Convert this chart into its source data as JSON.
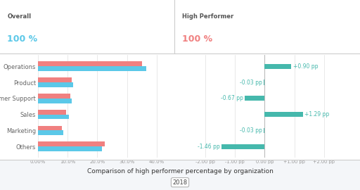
{
  "categories": [
    "Operations",
    "Product",
    "Customer Support",
    "Sales",
    "Marketing",
    "Others"
  ],
  "overall_blue": [
    36.5,
    12.0,
    11.5,
    10.5,
    8.5,
    21.5
  ],
  "overall_red": [
    35.0,
    11.5,
    11.0,
    9.5,
    8.0,
    22.5
  ],
  "diff_values": [
    0.9,
    -0.03,
    -0.67,
    1.29,
    -0.03,
    -1.46
  ],
  "diff_labels": [
    "+0.90 pp",
    "-0.03 pp",
    "-0.67 pp",
    "+1.29 pp",
    "-0.03 pp",
    "-1.46 pp"
  ],
  "blue_color": "#5BC8E8",
  "red_color": "#F08080",
  "teal_color": "#45B8AC",
  "header_blue": "#5BC8E8",
  "header_red": "#F08080",
  "header_gray": "#555555",
  "bg_color": "#FFFFFF",
  "panel_bg": "#F4F6F9",
  "border_color": "#CCCCCC",
  "overall_label": "Overall",
  "overall_pct": "100 %",
  "highperf_label": "High Performer",
  "highperf_pct": "100 %",
  "xlabel_left": [
    "0.00%",
    "10.0%",
    "20.0%",
    "30.0%",
    "40.0%"
  ],
  "xlabel_left_vals": [
    0,
    10,
    20,
    30,
    40
  ],
  "xlabel_right": [
    "-2.00 pp",
    "-1.00 pp",
    "0.00 pp",
    "+1.00 pp",
    "+2.00 pp"
  ],
  "xlabel_right_vals": [
    -2,
    -1,
    0,
    1,
    2
  ],
  "title": "Comparison of high performer percentage by organization",
  "year": "2018"
}
